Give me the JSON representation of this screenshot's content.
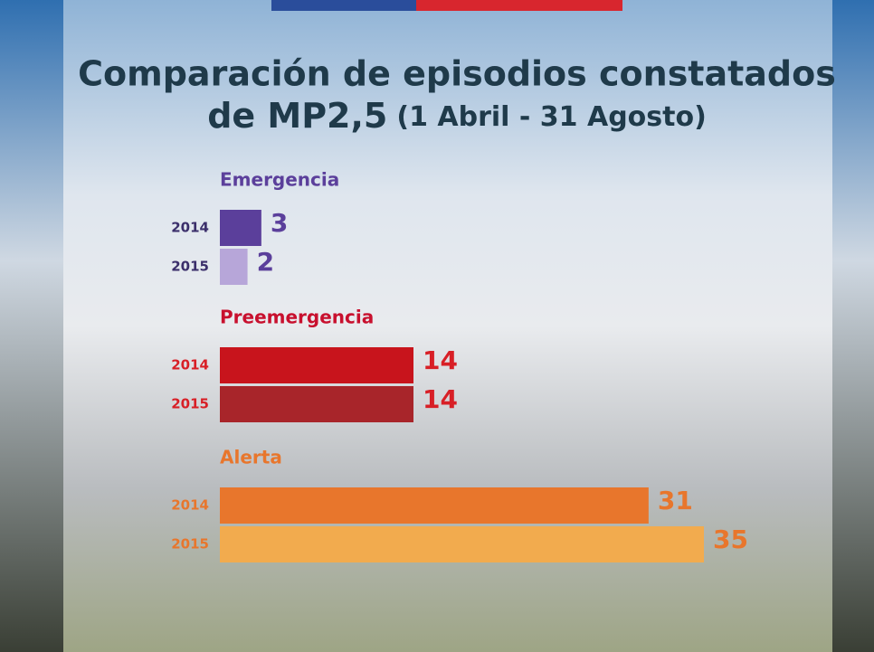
{
  "chart_data": {
    "type": "grouped-hbar",
    "title": [
      "Comparación de episodios constatados",
      "de MP2,5"
    ],
    "subtitle": "(1 Abril - 31 Agosto)",
    "groups": [
      {
        "name": "Emergencia",
        "label_color": "#5b3f9b",
        "categories": [
          "2014",
          "2015"
        ],
        "values": [
          3,
          2
        ],
        "colors": [
          "#5b3f9b",
          "#b7a6d9"
        ],
        "value_color": "#5b3f9b",
        "year_color": "#3b2f6b"
      },
      {
        "name": "Preemergencia",
        "label_color": "#c8102e",
        "categories": [
          "2014",
          "2015"
        ],
        "values": [
          14,
          14
        ],
        "colors": [
          "#c8141c",
          "#a8252a"
        ],
        "value_color": "#d81f26",
        "year_color": "#d81f26"
      },
      {
        "name": "Alerta",
        "label_color": "#e8762c",
        "categories": [
          "2014",
          "2015"
        ],
        "values": [
          31,
          35
        ],
        "colors": [
          "#e8762c",
          "#f2ab4e"
        ],
        "value_color": "#e8762c",
        "year_color": "#e8762c"
      }
    ]
  }
}
